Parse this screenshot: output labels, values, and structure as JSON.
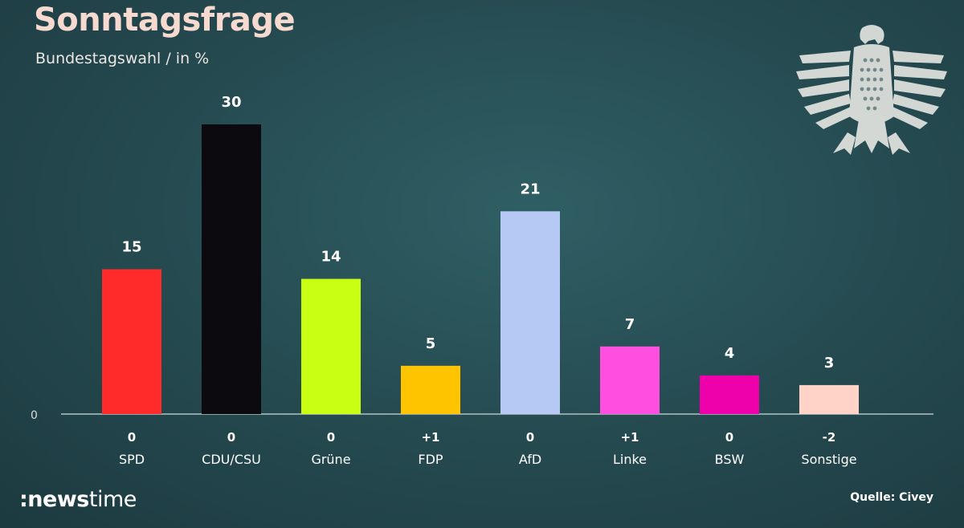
{
  "header": {
    "title": "Sonntagsfrage",
    "subtitle": "Bundestagswahl / in %"
  },
  "footer": {
    "brand_bold": ":news",
    "brand_light": "time",
    "source": "Quelle: Civey"
  },
  "chart_data": {
    "type": "bar",
    "title": "Sonntagsfrage",
    "subtitle": "Bundestagswahl / in %",
    "categories": [
      "SPD",
      "CDU/CSU",
      "Grüne",
      "FDP",
      "AfD",
      "Linke",
      "BSW",
      "Sonstige"
    ],
    "values": [
      15,
      30,
      14,
      5,
      21,
      7,
      4,
      3
    ],
    "changes": [
      "0",
      "0",
      "0",
      "+1",
      "0",
      "+1",
      "0",
      "-2"
    ],
    "colors": [
      "#ff2a2a",
      "#0c0a0e",
      "#c9ff12",
      "#ffc400",
      "#b6c8f4",
      "#ff4fe0",
      "#ee00aa",
      "#ffd3c8"
    ],
    "y_baseline_label": "0",
    "ylim": [
      0,
      30
    ],
    "grid": false,
    "legend": "none"
  }
}
